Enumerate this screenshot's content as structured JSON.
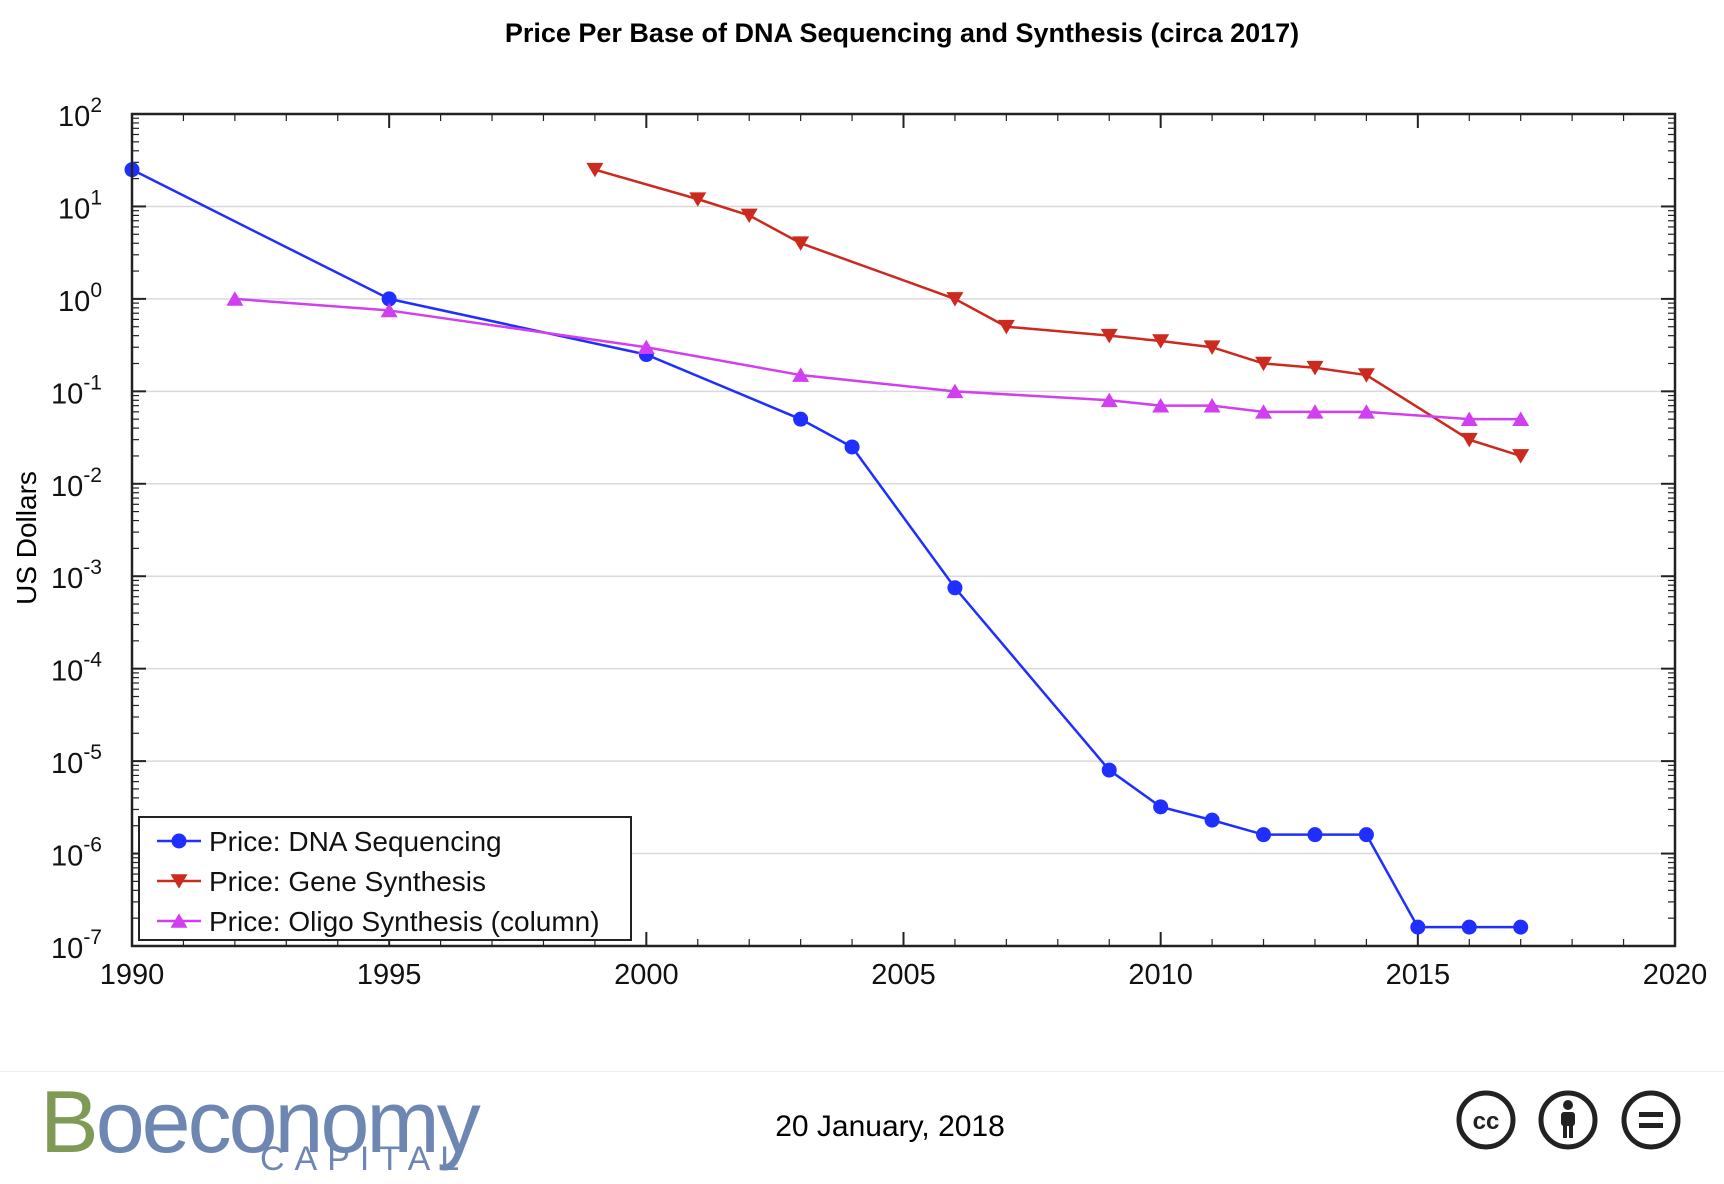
{
  "chart_data": {
    "type": "line",
    "title": "Price Per Base of DNA Sequencing and Synthesis (circa 2017)",
    "xlabel": "",
    "ylabel": "US Dollars",
    "xlim": [
      1990,
      2020
    ],
    "ylim": [
      1e-07,
      100
    ],
    "yscale": "log",
    "grid": "horizontal",
    "legend_position": "bottom-left",
    "x_ticks": [
      1990,
      1995,
      2000,
      2005,
      2010,
      2015,
      2020
    ],
    "x_tick_labels": [
      "1990",
      "1995",
      "2000",
      "2005",
      "2010",
      "2015",
      "2020"
    ],
    "y_ticks": [
      {
        "base": "10",
        "exp": "2"
      },
      {
        "base": "10",
        "exp": "1"
      },
      {
        "base": "10",
        "exp": "0"
      },
      {
        "base": "10",
        "exp": "-1"
      },
      {
        "base": "10",
        "exp": "-2"
      },
      {
        "base": "10",
        "exp": "-3"
      },
      {
        "base": "10",
        "exp": "-4"
      },
      {
        "base": "10",
        "exp": "-5"
      },
      {
        "base": "10",
        "exp": "-6"
      },
      {
        "base": "10",
        "exp": "-7"
      }
    ],
    "series": [
      {
        "name": "Price: DNA Sequencing",
        "color": "#1f2fff",
        "marker": "circle",
        "x": [
          1990,
          1995,
          2000,
          2003,
          2004,
          2006,
          2009,
          2010,
          2011,
          2012,
          2013,
          2014,
          2015,
          2016,
          2017
        ],
        "y": [
          25,
          1,
          0.25,
          0.05,
          0.025,
          0.00075,
          8e-06,
          3.2e-06,
          2.3e-06,
          1.6e-06,
          1.6e-06,
          1.6e-06,
          1.6e-07,
          1.6e-07,
          1.6e-07
        ]
      },
      {
        "name": "Price: Gene Synthesis",
        "color": "#cc2a1e",
        "marker": "triangle-down",
        "x": [
          1999,
          2001,
          2002,
          2003,
          2006,
          2007,
          2009,
          2010,
          2011,
          2012,
          2013,
          2014,
          2016,
          2017
        ],
        "y": [
          25,
          12,
          8,
          4,
          1,
          0.5,
          0.4,
          0.35,
          0.3,
          0.2,
          0.18,
          0.15,
          0.03,
          0.02
        ]
      },
      {
        "name": "Price: Oligo Synthesis (column)",
        "color": "#d23ff0",
        "marker": "triangle-up",
        "x": [
          1992,
          1995,
          2000,
          2003,
          2006,
          2009,
          2010,
          2011,
          2012,
          2013,
          2014,
          2016,
          2017
        ],
        "y": [
          1,
          0.75,
          0.3,
          0.15,
          0.1,
          0.08,
          0.07,
          0.07,
          0.06,
          0.06,
          0.06,
          0.05,
          0.05
        ]
      }
    ]
  },
  "footer": {
    "date": "20 January, 2018",
    "logo": {
      "word_first": "B",
      "word_rest": "oeconomy",
      "sub": "CAPITAL"
    },
    "icons": [
      "creative-commons-icon",
      "attribution-person-icon",
      "no-derivatives-icon"
    ]
  }
}
